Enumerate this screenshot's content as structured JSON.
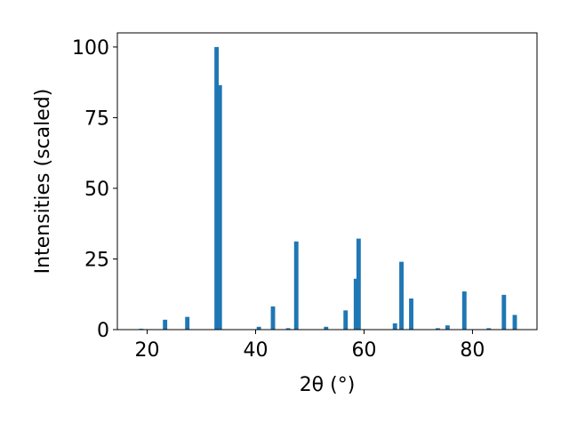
{
  "chart_data": {
    "type": "bar",
    "x_label": "2θ (°)",
    "y_label": "Intensities (scaled)",
    "x": [
      18.9,
      23.3,
      27.4,
      32.8,
      33.4,
      40.6,
      43.2,
      46.0,
      47.5,
      53.0,
      56.6,
      58.5,
      59.0,
      65.7,
      66.9,
      68.7,
      73.6,
      75.4,
      78.5,
      83.0,
      85.8,
      87.8
    ],
    "values": [
      0.3,
      3.5,
      4.5,
      100,
      86.5,
      1,
      8.2,
      0.5,
      31.2,
      1,
      6.8,
      18,
      32.2,
      2.2,
      24,
      11,
      0.5,
      1.5,
      13.5,
      0.5,
      12.3,
      5.2
    ],
    "color": "#1f77b4",
    "xlim": [
      14.5,
      91.9
    ],
    "xticks": [
      20,
      40,
      60,
      80
    ],
    "ylim": [
      0,
      105
    ],
    "yticks": [
      0,
      25,
      50,
      75,
      100
    ]
  }
}
